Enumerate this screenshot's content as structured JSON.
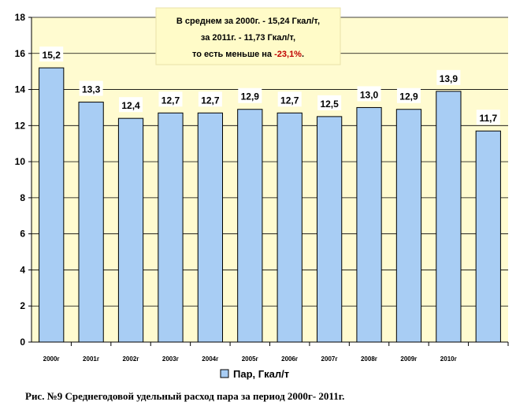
{
  "chart_data": {
    "type": "bar",
    "categories": [
      "2000г",
      "2001г",
      "2002г",
      "2003г",
      "2004г",
      "2005г",
      "2006г",
      "2007г",
      "2008г",
      "2009г",
      "2010г",
      ""
    ],
    "series": [
      {
        "name": "Пар, Гкал/т",
        "values": [
          15.2,
          13.3,
          12.4,
          12.7,
          12.7,
          12.9,
          12.7,
          12.5,
          13.0,
          12.9,
          13.9,
          11.7
        ]
      }
    ],
    "data_labels": [
      "15,2",
      "13,3",
      "12,4",
      "12,7",
      "12,7",
      "12,9",
      "12,7",
      "12,5",
      "13,0",
      "12,9",
      "13,9",
      "11,7"
    ],
    "yticks": [
      "0",
      "2",
      "4",
      "6",
      "8",
      "10",
      "12",
      "14",
      "16",
      "18"
    ],
    "ylim": [
      0,
      18
    ],
    "grid": true,
    "legend_position": "bottom-center",
    "colors": {
      "bar": "#a8cdf4",
      "bar_edge": "#000000",
      "plot_bg": "#fffbd0",
      "note_bg": "#fffbc8",
      "highlight": "#c00000"
    },
    "annotation": {
      "lines": [
        "В среднем за 2000г. - 15,24 Гкал/т,",
        "за 2011г. - 11,73 Гкал/т,"
      ],
      "line3_prefix": "то есть меньше на ",
      "line3_highlight": "-23,1%",
      "line3_suffix": "."
    },
    "caption": "Рис. №9 Среднегодовой удельный расход пара за период 2000г- 2011г."
  }
}
